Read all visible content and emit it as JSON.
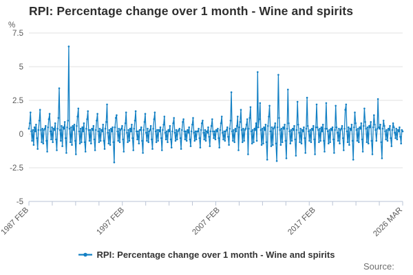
{
  "chart_data": {
    "type": "line",
    "title": "RPI: Percentage change over 1 month - Wine and spirits",
    "unit": "%",
    "legend_label": "RPI: Percentage change over 1 month - Wine and spirits",
    "xlabel": "",
    "ylabel": "%",
    "ylim": [
      -5,
      7.5
    ],
    "xlim": [
      1987.0833,
      2026.1667
    ],
    "grid": "horizontal",
    "legend_position": "bottom-center",
    "marker": "circle",
    "y_ticks": [
      7.5,
      5,
      2.5,
      0,
      -2.5,
      -5
    ],
    "x_minor_tick_count": 16,
    "x_ticks": [
      {
        "label": "1987 FEB",
        "x": 1987.0833
      },
      {
        "label": "1997 FEB",
        "x": 1997.0833
      },
      {
        "label": "2007 FEB",
        "x": 2007.0833
      },
      {
        "label": "2017 FEB",
        "x": 2017.0833
      },
      {
        "label": "2026 MAR",
        "x": 2026.1667
      }
    ],
    "colors": {
      "series": "#1380c4",
      "grid": "#e2e2e2",
      "axis": "#b9c3d4",
      "title_text": "#2e2e2e",
      "tick_text": "#595959",
      "source_text": "#6e6e6e"
    },
    "series": [
      {
        "name": "RPI: Percentage change over 1 month - Wine and spirits",
        "start": "1987 FEB",
        "end": "2026 MAR",
        "frequency": "monthly",
        "values": [
          [
            0.4,
            0.8,
            1.6,
            0.2,
            -0.5,
            0.3,
            -0.8,
            0.5,
            0.2,
            0.7,
            -0.3,
            -1.1
          ],
          [
            0.3,
            1.0,
            1.8,
            0.3,
            -0.6,
            0.4,
            -0.7,
            0.3,
            0.4,
            0.6,
            -0.5,
            -1.3
          ],
          [
            0.5,
            1.1,
            1.5,
            0.2,
            -0.4,
            0.5,
            -0.6,
            0.4,
            0.3,
            0.8,
            -0.4,
            -1.2
          ],
          [
            0.4,
            1.2,
            3.4,
            0.3,
            -0.5,
            0.6,
            -0.9,
            0.5,
            0.4,
            0.9,
            -0.3,
            -1.4
          ],
          [
            0.5,
            1.0,
            6.5,
            0.4,
            -0.6,
            0.5,
            -0.8,
            0.6,
            0.3,
            0.7,
            -0.5,
            -1.5
          ],
          [
            0.6,
            1.3,
            1.9,
            0.2,
            -0.7,
            0.4,
            -0.6,
            0.5,
            0.2,
            0.8,
            -0.6,
            -1.3
          ],
          [
            0.4,
            1.1,
            1.7,
            0.3,
            -0.5,
            0.3,
            -0.7,
            0.4,
            0.3,
            0.6,
            -0.4,
            -1.2
          ],
          [
            0.3,
            1.0,
            1.5,
            0.2,
            -0.6,
            0.4,
            -0.5,
            0.3,
            0.2,
            0.7,
            -0.5,
            -1.1
          ],
          [
            0.4,
            0.9,
            2.2,
            0.1,
            -0.7,
            0.3,
            -0.8,
            0.4,
            0.2,
            0.5,
            -0.6,
            -2.1
          ],
          [
            0.5,
            1.2,
            1.4,
            0.2,
            -0.5,
            0.4,
            -0.6,
            0.3,
            0.4,
            0.6,
            -0.4,
            -1.3
          ],
          [
            0.3,
            0.8,
            1.6,
            0.1,
            -0.6,
            0.3,
            -0.5,
            0.4,
            0.2,
            0.7,
            -0.3,
            -1.2
          ],
          [
            0.4,
            1.0,
            1.7,
            0.2,
            -0.4,
            0.2,
            -0.7,
            0.3,
            0.3,
            0.5,
            -0.5,
            -1.4
          ],
          [
            0.3,
            0.9,
            1.5,
            0.1,
            -0.5,
            0.4,
            -0.6,
            0.2,
            0.3,
            0.6,
            -0.4,
            -1.1
          ],
          [
            0.4,
            1.1,
            1.6,
            0.2,
            -0.6,
            0.3,
            -0.5,
            0.3,
            0.2,
            0.5,
            -0.3,
            -1.2
          ],
          [
            0.3,
            0.7,
            1.3,
            0.1,
            -0.4,
            0.2,
            -0.6,
            0.3,
            0.2,
            0.6,
            -0.4,
            -1.0
          ],
          [
            0.2,
            0.8,
            1.2,
            0.1,
            -0.5,
            0.3,
            -0.4,
            0.2,
            0.3,
            0.4,
            -0.3,
            -1.1
          ],
          [
            0.3,
            0.9,
            1.1,
            0.2,
            -0.4,
            0.2,
            -0.5,
            0.3,
            0.1,
            0.5,
            -0.4,
            -0.9
          ],
          [
            0.2,
            0.7,
            1.2,
            0.1,
            -0.5,
            0.2,
            -0.4,
            0.2,
            0.2,
            0.4,
            -0.3,
            -1.0
          ],
          [
            0.3,
            0.8,
            1.0,
            0.1,
            -0.4,
            0.3,
            -0.5,
            0.2,
            0.1,
            0.5,
            -0.2,
            -0.9
          ],
          [
            0.2,
            0.6,
            1.1,
            0.2,
            -0.3,
            0.2,
            -0.4,
            0.3,
            0.2,
            0.4,
            -0.3,
            -1.0
          ],
          [
            0.3,
            0.8,
            1.3,
            0.1,
            -0.4,
            0.2,
            -0.5,
            0.2,
            0.3,
            0.5,
            -0.2,
            -0.8
          ],
          [
            0.4,
            1.0,
            3.1,
            0.2,
            -0.5,
            0.3,
            -0.6,
            0.4,
            0.2,
            0.6,
            1.3,
            -1.2
          ],
          [
            0.5,
            0.9,
            1.8,
            0.3,
            -0.6,
            0.4,
            -0.5,
            0.3,
            0.4,
            0.7,
            1.1,
            -1.5
          ],
          [
            0.4,
            1.2,
            2.0,
            0.2,
            -0.7,
            0.3,
            -0.6,
            0.4,
            0.3,
            0.8,
            -0.5,
            4.6
          ],
          [
            0.5,
            1.1,
            2.3,
            0.3,
            -0.8,
            0.4,
            -0.7,
            0.5,
            0.3,
            0.7,
            -0.6,
            -1.9
          ],
          [
            0.6,
            1.3,
            2.1,
            0.2,
            -0.9,
            0.5,
            -0.8,
            0.4,
            0.5,
            0.8,
            -0.7,
            -2.0
          ],
          [
            0.5,
            4.4,
            1.2,
            0.3,
            -0.8,
            0.4,
            -0.6,
            0.5,
            0.4,
            0.7,
            -0.5,
            -1.8
          ],
          [
            0.4,
            3.3,
            0.8,
            0.2,
            -0.7,
            0.3,
            -0.5,
            0.4,
            0.3,
            0.6,
            -0.4,
            -1.6
          ],
          [
            0.3,
            2.4,
            0.7,
            0.1,
            -0.6,
            0.4,
            -0.7,
            0.3,
            0.2,
            0.5,
            -0.3,
            -1.4
          ],
          [
            0.4,
            2.7,
            0.6,
            0.2,
            -0.5,
            0.3,
            -0.6,
            0.4,
            0.3,
            0.6,
            -0.4,
            -1.5
          ],
          [
            0.5,
            2.2,
            0.5,
            0.3,
            -0.6,
            0.4,
            -0.5,
            0.5,
            0.2,
            0.7,
            -0.5,
            -1.3
          ],
          [
            0.4,
            2.3,
            0.4,
            0.2,
            -0.7,
            0.3,
            -0.6,
            0.4,
            0.3,
            0.5,
            -0.4,
            -1.4
          ],
          [
            0.3,
            2.1,
            0.5,
            0.1,
            -0.5,
            0.4,
            -0.7,
            0.3,
            0.4,
            0.6,
            -0.3,
            -1.2
          ],
          [
            0.4,
            1.8,
            2.2,
            0.2,
            -0.6,
            0.5,
            -0.8,
            0.4,
            0.3,
            0.7,
            -0.5,
            -1.9
          ],
          [
            0.5,
            1.6,
            0.8,
            0.3,
            -0.5,
            0.4,
            -0.6,
            0.5,
            0.4,
            0.8,
            -0.4,
            -1.3
          ],
          [
            0.6,
            1.9,
            0.9,
            0.4,
            -0.6,
            0.5,
            -0.7,
            0.6,
            0.5,
            0.9,
            -0.5,
            -1.5
          ],
          [
            0.5,
            1.4,
            0.7,
            0.3,
            -0.5,
            0.4,
            2.6,
            0.5,
            0.4,
            0.7,
            -0.6,
            -1.8
          ],
          [
            0.4,
            1.0,
            0.6,
            0.2,
            -0.4,
            0.3,
            -0.5,
            0.4,
            0.3,
            0.6,
            -0.3,
            -0.9
          ],
          [
            0.3,
            0.8,
            0.5,
            0.1,
            -0.3,
            0.4,
            -0.4,
            0.3,
            0.2,
            0.5,
            -0.2,
            -0.7
          ],
          [
            0.3,
            0.2
          ]
        ]
      }
    ]
  },
  "footer": {
    "source_label": "Source:"
  }
}
